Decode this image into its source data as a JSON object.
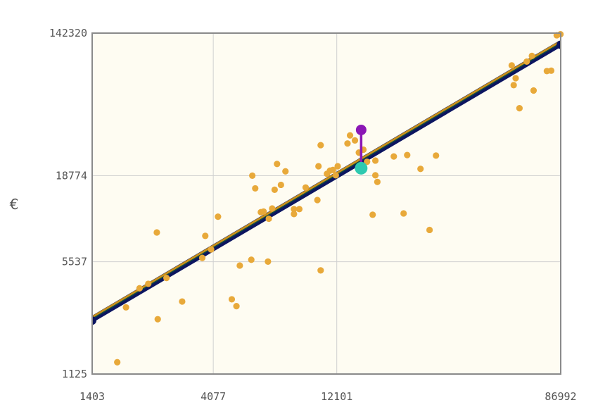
{
  "chart_data": {
    "type": "scatter",
    "title": "",
    "xlabel": "",
    "ylabel": "€",
    "x_scale": "log",
    "y_scale": "log",
    "xlim": [
      1403,
      86992
    ],
    "ylim": [
      1125,
      142320
    ],
    "x_ticks": [
      "1403",
      "4077",
      "12101",
      "86992"
    ],
    "y_ticks": [
      "1125",
      "5537",
      "18774",
      "142320"
    ],
    "grid": true,
    "colors": {
      "plot_background": "#fefcf2",
      "points": "#e8a93a",
      "fit_line_outer": "#0c1560",
      "fit_line_inner": "#c8901a",
      "residual": "#8b17b5",
      "selected_point": "#8b17b5",
      "fitted_point": "#2ec9b0"
    },
    "fit_line": {
      "from": [
        1403,
        2450
      ],
      "to": [
        86992,
        123000
      ]
    },
    "highlight": {
      "observed": [
        15000,
        36000
      ],
      "fitted": [
        15000,
        20900
      ]
    },
    "points": [
      [
        1750,
        1330
      ],
      [
        1890,
        2900
      ],
      [
        2130,
        3800
      ],
      [
        2300,
        4050
      ],
      [
        2500,
        2450
      ],
      [
        2480,
        8400
      ],
      [
        2700,
        4400
      ],
      [
        3100,
        3150
      ],
      [
        3700,
        5850
      ],
      [
        3800,
        8000
      ],
      [
        4000,
        6600
      ],
      [
        4250,
        10500
      ],
      [
        4800,
        3250
      ],
      [
        5000,
        2950
      ],
      [
        5150,
        5250
      ],
      [
        5700,
        5700
      ],
      [
        5750,
        18800
      ],
      [
        5900,
        15700
      ],
      [
        6200,
        11200
      ],
      [
        6350,
        11300
      ],
      [
        6600,
        5550
      ],
      [
        6650,
        10200
      ],
      [
        6850,
        11800
      ],
      [
        7000,
        15400
      ],
      [
        7150,
        22200
      ],
      [
        7400,
        16500
      ],
      [
        7700,
        20000
      ],
      [
        8300,
        10900
      ],
      [
        8300,
        11700
      ],
      [
        8700,
        11700
      ],
      [
        9200,
        15900
      ],
      [
        10200,
        13300
      ],
      [
        10300,
        21500
      ],
      [
        10500,
        29000
      ],
      [
        10500,
        4900
      ],
      [
        11100,
        19300
      ],
      [
        11400,
        20200
      ],
      [
        11700,
        20400
      ],
      [
        12000,
        18900
      ],
      [
        12200,
        21500
      ],
      [
        13300,
        29700
      ],
      [
        13600,
        33300
      ],
      [
        14200,
        31000
      ],
      [
        14700,
        26100
      ],
      [
        15300,
        27200
      ],
      [
        15800,
        22900
      ],
      [
        16600,
        10800
      ],
      [
        17000,
        23300
      ],
      [
        17000,
        18900
      ],
      [
        17300,
        17200
      ],
      [
        20000,
        24700
      ],
      [
        21800,
        11000
      ],
      [
        22500,
        25200
      ],
      [
        25300,
        20700
      ],
      [
        27400,
        8700
      ],
      [
        29000,
        25000
      ],
      [
        56500,
        90000
      ],
      [
        57500,
        68000
      ],
      [
        58500,
        75000
      ],
      [
        60500,
        49000
      ],
      [
        64500,
        95000
      ],
      [
        67500,
        103000
      ],
      [
        68500,
        63000
      ],
      [
        77000,
        83000
      ],
      [
        80000,
        83500
      ],
      [
        84000,
        138000
      ],
      [
        86800,
        140000
      ]
    ]
  }
}
